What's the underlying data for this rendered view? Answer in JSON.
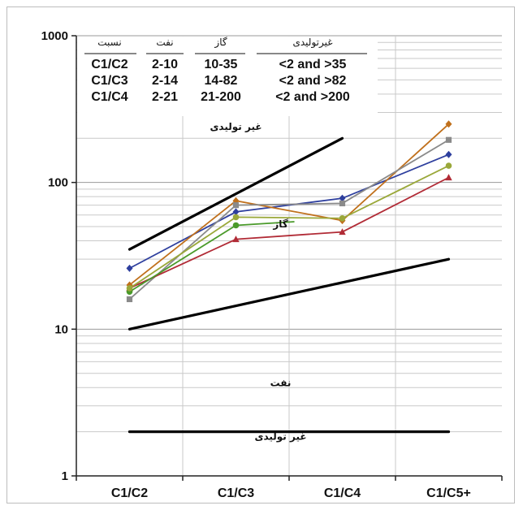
{
  "chart_data": {
    "type": "line",
    "y_scale": "log",
    "ylim": [
      1,
      1000
    ],
    "y_ticks": [
      "1",
      "10",
      "100",
      "1000"
    ],
    "categories": [
      "C1/C2",
      "C1/C3",
      "C1/C4",
      "C1/C5+"
    ],
    "grid": true,
    "legend": "none",
    "zone_boundaries": [
      {
        "from": 35,
        "to": 200,
        "x_from": "C1/C2",
        "x_to": "C1/C4"
      },
      {
        "from": 10,
        "to": 30,
        "x_from": "C1/C2",
        "x_to": "C1/C5+"
      },
      {
        "from": 2,
        "to": 2,
        "x_from": "C1/C2",
        "x_to": "C1/C5+"
      }
    ],
    "zone_labels": [
      {
        "text": "غیر تولیدی",
        "x": 1.5,
        "y": 240
      },
      {
        "text": "گاز",
        "x": 1.92,
        "y": 52
      },
      {
        "text": "نفت",
        "x": 1.92,
        "y": 4.3
      },
      {
        "text": "غیر تولیدی",
        "x": 1.92,
        "y": 1.85
      }
    ],
    "series": [
      {
        "color": "#2e3f9e",
        "marker": "diamond",
        "values": [
          26,
          63,
          78,
          155
        ]
      },
      {
        "color": "#c0701c",
        "marker": "diamond",
        "values": [
          20,
          75,
          55,
          250
        ]
      },
      {
        "color": "#8a8a8a",
        "marker": "square",
        "values": [
          16,
          70,
          72,
          195
        ]
      },
      {
        "color": "#b12b36",
        "marker": "triangle",
        "values": [
          19,
          41,
          46,
          108
        ]
      },
      {
        "color": "#4a9a2a",
        "marker": "circle",
        "values": [
          18,
          51,
          60,
          120
        ],
        "x_end": 1.55,
        "end_value": 54
      },
      {
        "color": "#9aa83a",
        "marker": "circle",
        "values": [
          19,
          58,
          57,
          130
        ]
      }
    ],
    "table": {
      "headers": [
        "نسبت",
        "نفت",
        "گاز",
        "غیرتولیدی"
      ],
      "rows": [
        [
          "C1/C2",
          "2-10",
          "10-35",
          "<2 and >35"
        ],
        [
          "C1/C3",
          "2-14",
          "14-82",
          "<2 and >82"
        ],
        [
          "C1/C4",
          "2-21",
          "21-200",
          "<2 and >200"
        ]
      ]
    }
  }
}
